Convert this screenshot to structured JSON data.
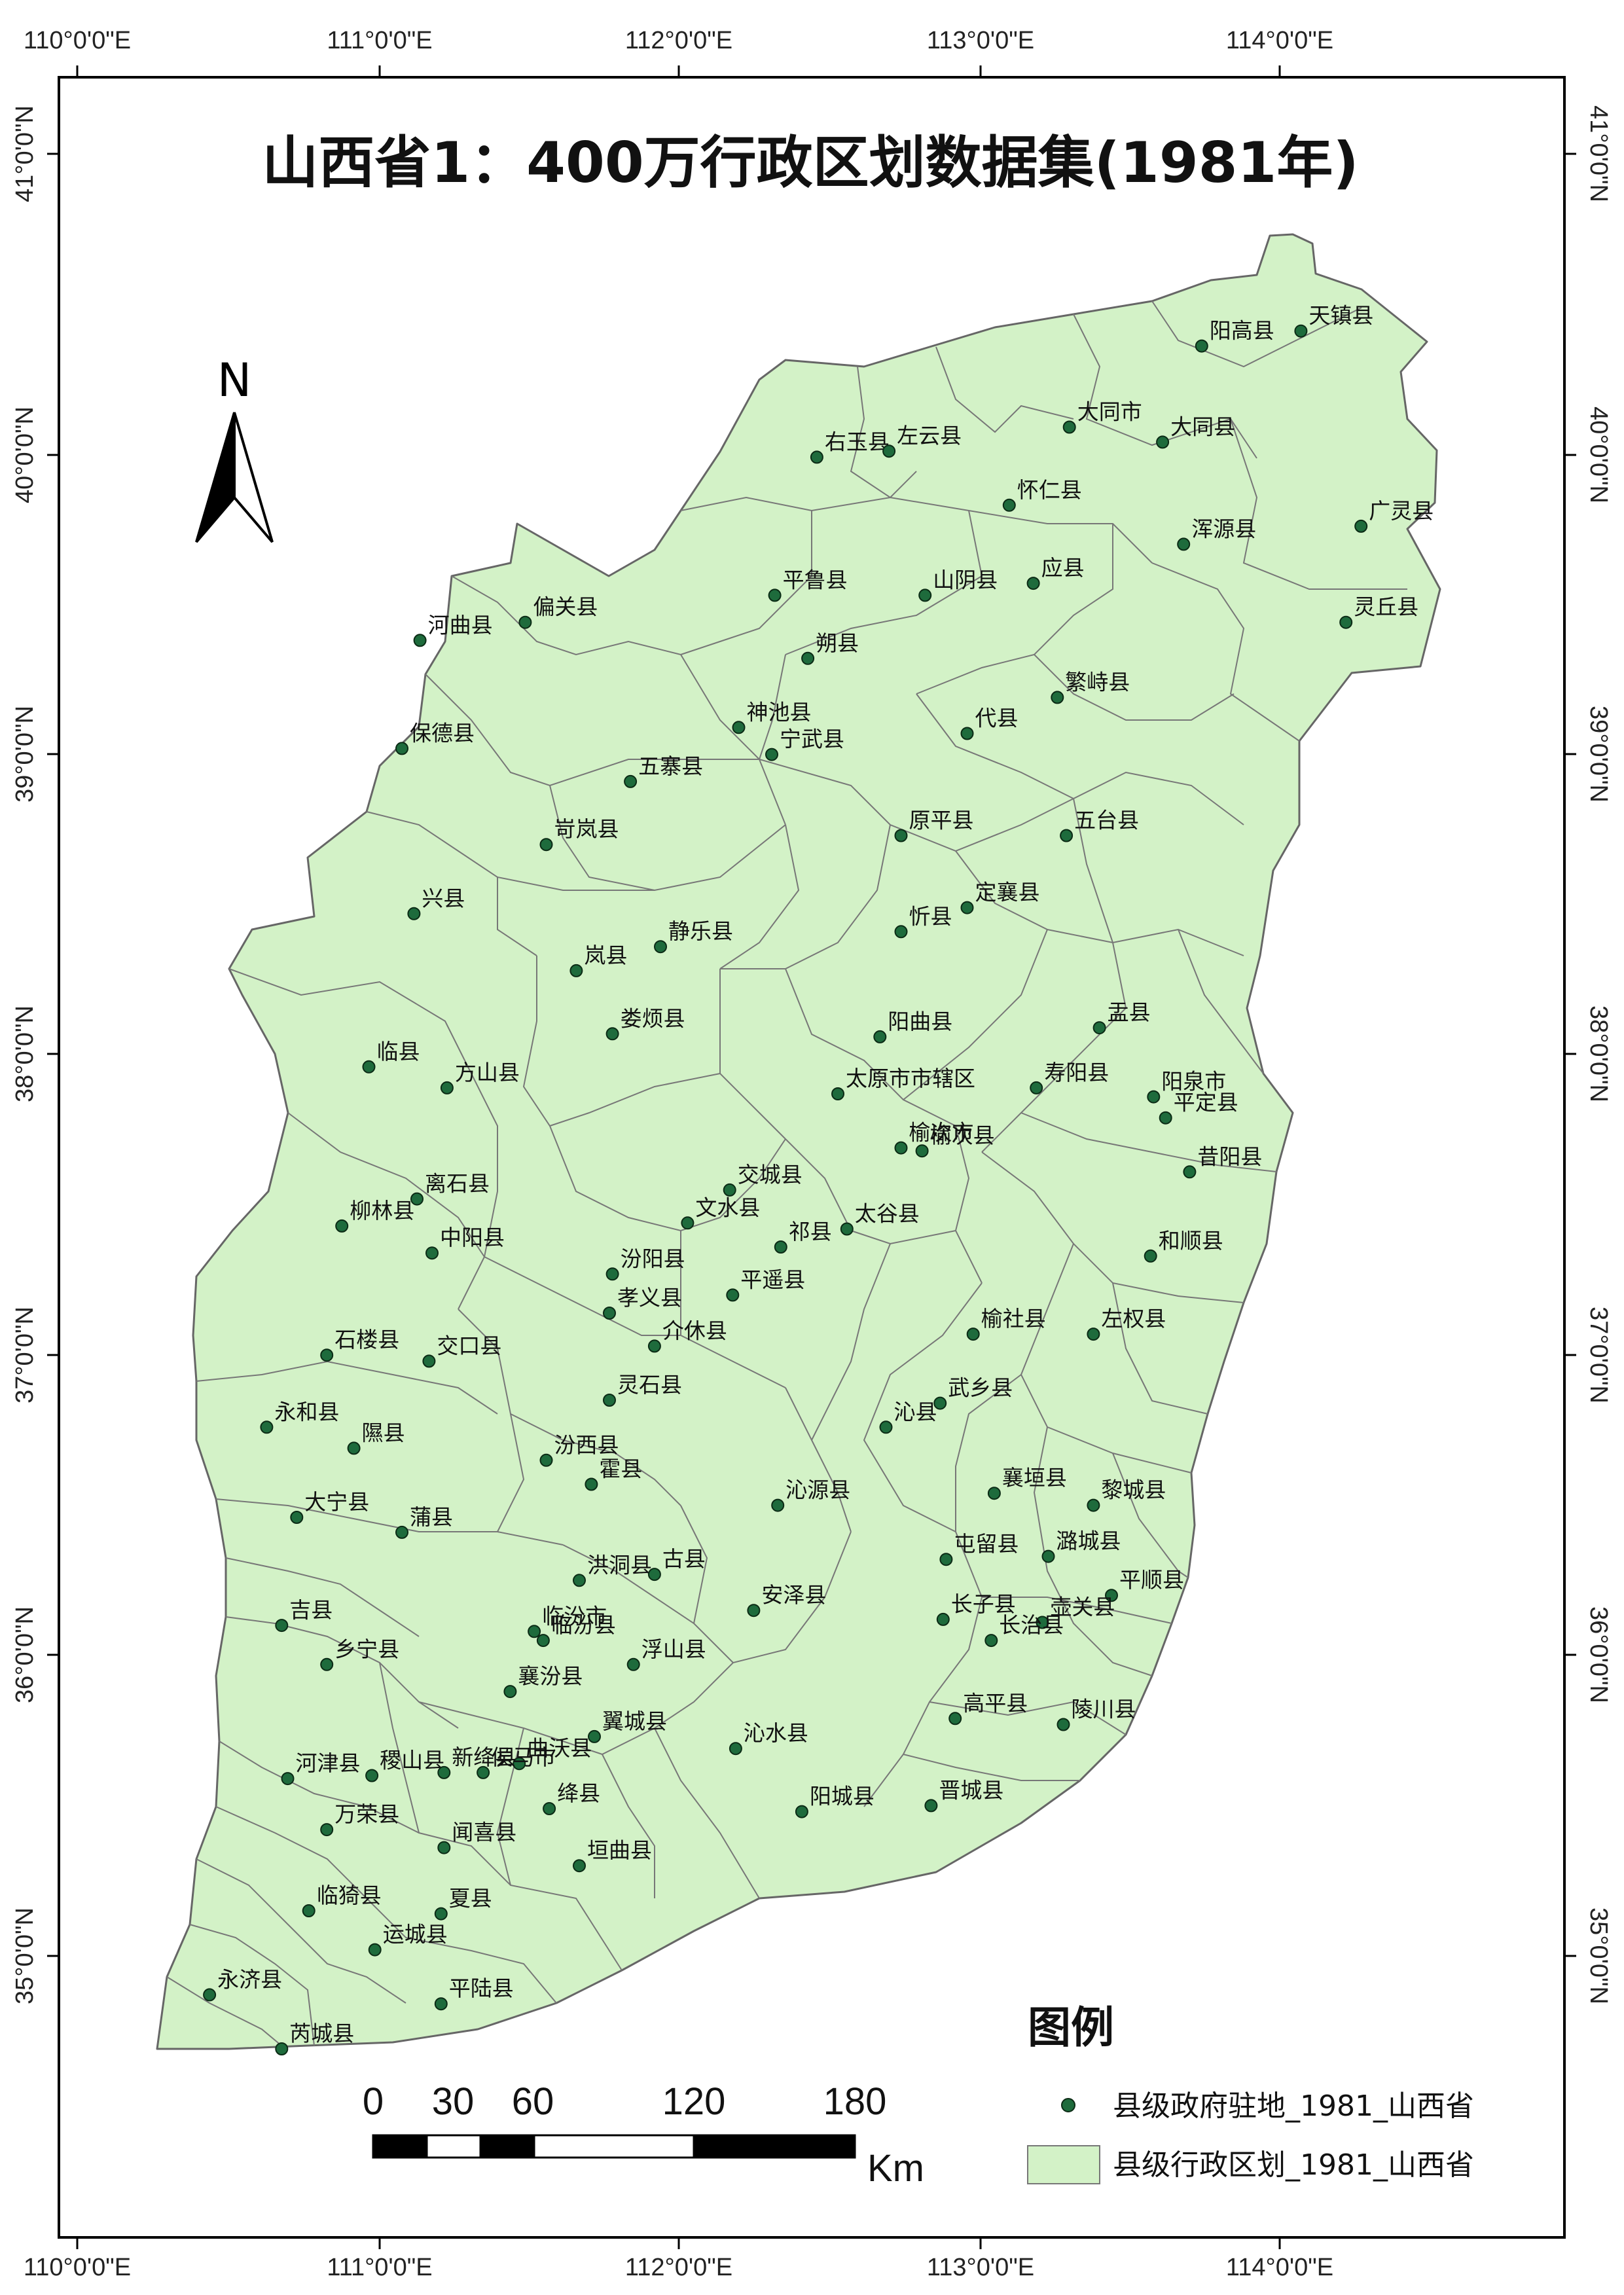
{
  "title": "山西省1：400万行政区划数据集(1981年)",
  "north_arrow": {
    "label": "N"
  },
  "graticule": {
    "lon_labels": [
      "110°0'0\"E",
      "111°0'0\"E",
      "112°0'0\"E",
      "113°0'0\"E",
      "114°0'0\"E"
    ],
    "lat_labels": [
      "41°0'0\"N",
      "40°0'0\"N",
      "39°0'0\"N",
      "38°0'0\"N",
      "37°0'0\"N",
      "36°0'0\"N",
      "35°0'0\"N"
    ]
  },
  "counties": [
    {
      "name": "天镇县",
      "lon": 114.07,
      "lat": 40.41
    },
    {
      "name": "阳高县",
      "lon": 113.74,
      "lat": 40.36
    },
    {
      "name": "大同市",
      "lon": 113.3,
      "lat": 40.09
    },
    {
      "name": "大同县",
      "lon": 113.61,
      "lat": 40.04
    },
    {
      "name": "右玉县",
      "lon": 112.46,
      "lat": 39.99
    },
    {
      "name": "左云县",
      "lon": 112.7,
      "lat": 40.01
    },
    {
      "name": "怀仁县",
      "lon": 113.1,
      "lat": 39.83
    },
    {
      "name": "广灵县",
      "lon": 114.27,
      "lat": 39.76
    },
    {
      "name": "浑源县",
      "lon": 113.68,
      "lat": 39.7
    },
    {
      "name": "平鲁县",
      "lon": 112.32,
      "lat": 39.53
    },
    {
      "name": "山阴县",
      "lon": 112.82,
      "lat": 39.53
    },
    {
      "name": "应县",
      "lon": 113.18,
      "lat": 39.57
    },
    {
      "name": "河曲县",
      "lon": 111.14,
      "lat": 39.38
    },
    {
      "name": "偏关县",
      "lon": 111.49,
      "lat": 39.44
    },
    {
      "name": "灵丘县",
      "lon": 114.22,
      "lat": 39.44
    },
    {
      "name": "朔县",
      "lon": 112.43,
      "lat": 39.32
    },
    {
      "name": "繁峙县",
      "lon": 113.26,
      "lat": 39.19
    },
    {
      "name": "神池县",
      "lon": 112.2,
      "lat": 39.09
    },
    {
      "name": "代县",
      "lon": 112.96,
      "lat": 39.07
    },
    {
      "name": "保德县",
      "lon": 111.08,
      "lat": 39.02
    },
    {
      "name": "宁武县",
      "lon": 112.31,
      "lat": 39.0
    },
    {
      "name": "五寨县",
      "lon": 111.84,
      "lat": 38.91
    },
    {
      "name": "原平县",
      "lon": 112.74,
      "lat": 38.73
    },
    {
      "name": "五台县",
      "lon": 113.29,
      "lat": 38.73
    },
    {
      "name": "岢岚县",
      "lon": 111.56,
      "lat": 38.7
    },
    {
      "name": "兴县",
      "lon": 111.12,
      "lat": 38.47
    },
    {
      "name": "定襄县",
      "lon": 112.96,
      "lat": 38.49
    },
    {
      "name": "忻县",
      "lon": 112.74,
      "lat": 38.41
    },
    {
      "name": "静乐县",
      "lon": 111.94,
      "lat": 38.36
    },
    {
      "name": "岚县",
      "lon": 111.66,
      "lat": 38.28
    },
    {
      "name": "盂县",
      "lon": 113.4,
      "lat": 38.09
    },
    {
      "name": "阳曲县",
      "lon": 112.67,
      "lat": 38.06
    },
    {
      "name": "娄烦县",
      "lon": 111.78,
      "lat": 38.07
    },
    {
      "name": "临县",
      "lon": 110.97,
      "lat": 37.96
    },
    {
      "name": "方山县",
      "lon": 111.23,
      "lat": 37.89
    },
    {
      "name": "寿阳县",
      "lon": 113.19,
      "lat": 37.89
    },
    {
      "name": "太原市市辖区",
      "lon": 112.53,
      "lat": 37.87
    },
    {
      "name": "平定县",
      "lon": 113.62,
      "lat": 37.79
    },
    {
      "name": "阳泉市",
      "lon": 113.58,
      "lat": 37.86
    },
    {
      "name": "榆次市",
      "lon": 112.74,
      "lat": 37.69
    },
    {
      "name": "榆次县",
      "lon": 112.81,
      "lat": 37.68
    },
    {
      "name": "昔阳县",
      "lon": 113.7,
      "lat": 37.61
    },
    {
      "name": "交城县",
      "lon": 112.17,
      "lat": 37.55
    },
    {
      "name": "离石县",
      "lon": 111.13,
      "lat": 37.52
    },
    {
      "name": "柳林县",
      "lon": 110.88,
      "lat": 37.43
    },
    {
      "name": "文水县",
      "lon": 112.03,
      "lat": 37.44
    },
    {
      "name": "太谷县",
      "lon": 112.56,
      "lat": 37.42
    },
    {
      "name": "祁县",
      "lon": 112.34,
      "lat": 37.36
    },
    {
      "name": "中阳县",
      "lon": 111.18,
      "lat": 37.34
    },
    {
      "name": "和顺县",
      "lon": 113.57,
      "lat": 37.33
    },
    {
      "name": "汾阳县",
      "lon": 111.78,
      "lat": 37.27
    },
    {
      "name": "平遥县",
      "lon": 112.18,
      "lat": 37.2
    },
    {
      "name": "孝义县",
      "lon": 111.77,
      "lat": 37.14
    },
    {
      "name": "介休县",
      "lon": 111.92,
      "lat": 37.03
    },
    {
      "name": "榆社县",
      "lon": 112.98,
      "lat": 37.07
    },
    {
      "name": "左权县",
      "lon": 113.38,
      "lat": 37.07
    },
    {
      "name": "石楼县",
      "lon": 110.83,
      "lat": 37.0
    },
    {
      "name": "交口县",
      "lon": 111.17,
      "lat": 36.98
    },
    {
      "name": "灵石县",
      "lon": 111.77,
      "lat": 36.85
    },
    {
      "name": "武乡县",
      "lon": 112.87,
      "lat": 36.84
    },
    {
      "name": "永和县",
      "lon": 110.63,
      "lat": 36.76
    },
    {
      "name": "沁县",
      "lon": 112.69,
      "lat": 36.76
    },
    {
      "name": "隰县",
      "lon": 110.92,
      "lat": 36.69
    },
    {
      "name": "汾西县",
      "lon": 111.56,
      "lat": 36.65
    },
    {
      "name": "霍县",
      "lon": 111.71,
      "lat": 36.57
    },
    {
      "name": "襄垣县",
      "lon": 113.05,
      "lat": 36.54
    },
    {
      "name": "黎城县",
      "lon": 113.38,
      "lat": 36.5
    },
    {
      "name": "沁源县",
      "lon": 112.33,
      "lat": 36.5
    },
    {
      "name": "大宁县",
      "lon": 110.73,
      "lat": 36.46
    },
    {
      "name": "蒲县",
      "lon": 111.08,
      "lat": 36.41
    },
    {
      "name": "屯留县",
      "lon": 112.89,
      "lat": 36.32
    },
    {
      "name": "潞城县",
      "lon": 113.23,
      "lat": 36.33
    },
    {
      "name": "洪洞县",
      "lon": 111.67,
      "lat": 36.25
    },
    {
      "name": "古县",
      "lon": 111.92,
      "lat": 36.27
    },
    {
      "name": "平顺县",
      "lon": 113.44,
      "lat": 36.2
    },
    {
      "name": "长子县",
      "lon": 112.88,
      "lat": 36.12
    },
    {
      "name": "壶关县",
      "lon": 113.21,
      "lat": 36.11
    },
    {
      "name": "长治县",
      "lon": 113.04,
      "lat": 36.05
    },
    {
      "name": "安泽县",
      "lon": 112.25,
      "lat": 36.15
    },
    {
      "name": "临汾市",
      "lon": 111.52,
      "lat": 36.08
    },
    {
      "name": "临汾县",
      "lon": 111.55,
      "lat": 36.05
    },
    {
      "name": "吉县",
      "lon": 110.68,
      "lat": 36.1
    },
    {
      "name": "乡宁县",
      "lon": 110.83,
      "lat": 35.97
    },
    {
      "name": "浮山县",
      "lon": 111.85,
      "lat": 35.97
    },
    {
      "name": "襄汾县",
      "lon": 111.44,
      "lat": 35.88
    },
    {
      "name": "高平县",
      "lon": 112.92,
      "lat": 35.79
    },
    {
      "name": "陵川县",
      "lon": 113.28,
      "lat": 35.77
    },
    {
      "name": "翼城县",
      "lon": 111.72,
      "lat": 35.73
    },
    {
      "name": "沁水县",
      "lon": 112.19,
      "lat": 35.69
    },
    {
      "name": "曲沃县",
      "lon": 111.47,
      "lat": 35.64
    },
    {
      "name": "河津县",
      "lon": 110.7,
      "lat": 35.59
    },
    {
      "name": "稷山县",
      "lon": 110.98,
      "lat": 35.6
    },
    {
      "name": "新绛县",
      "lon": 111.22,
      "lat": 35.61
    },
    {
      "name": "侯马市",
      "lon": 111.35,
      "lat": 35.61
    },
    {
      "name": "绛县",
      "lon": 111.57,
      "lat": 35.49
    },
    {
      "name": "阳城县",
      "lon": 112.41,
      "lat": 35.48
    },
    {
      "name": "晋城县",
      "lon": 112.84,
      "lat": 35.5
    },
    {
      "name": "万荣县",
      "lon": 110.83,
      "lat": 35.42
    },
    {
      "name": "闻喜县",
      "lon": 111.22,
      "lat": 35.36
    },
    {
      "name": "垣曲县",
      "lon": 111.67,
      "lat": 35.3
    },
    {
      "name": "临猗县",
      "lon": 110.77,
      "lat": 35.15
    },
    {
      "name": "夏县",
      "lon": 111.21,
      "lat": 35.14
    },
    {
      "name": "运城县",
      "lon": 110.99,
      "lat": 35.02
    },
    {
      "name": "永济县",
      "lon": 110.44,
      "lat": 34.87
    },
    {
      "name": "平陆县",
      "lon": 111.21,
      "lat": 34.84
    },
    {
      "name": "芮城县",
      "lon": 110.68,
      "lat": 34.69
    }
  ],
  "legend": {
    "title": "图例",
    "point_label": "县级政府驻地_1981_山西省",
    "polygon_label": "县级行政区划_1981_山西省"
  },
  "scale_bar": {
    "ticks": [
      "0",
      "30",
      "60",
      "120",
      "180"
    ],
    "unit": "Km"
  },
  "colors": {
    "province_fill": "#d3f2c7",
    "boundary": "#707070",
    "seat_dot": "#1e6b3c",
    "frame": "#000000"
  }
}
